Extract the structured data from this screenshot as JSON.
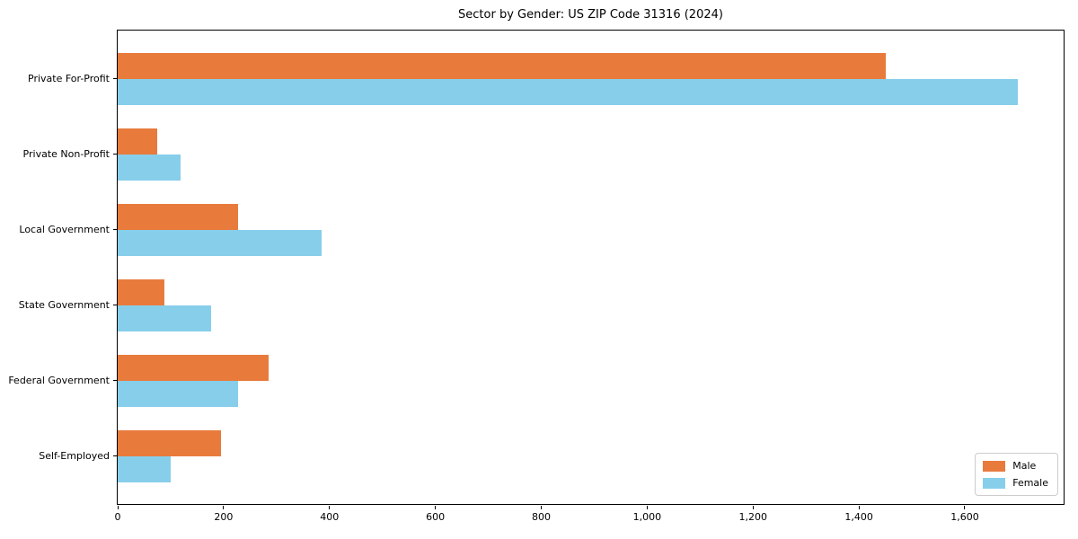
{
  "title": "Sector by Gender: US ZIP Code 31316 (2024)",
  "chart_data": {
    "type": "bar",
    "orientation": "horizontal",
    "title": "Sector by Gender: US ZIP Code 31316 (2024)",
    "categories": [
      "Private For-Profit",
      "Private Non-Profit",
      "Local Government",
      "State Government",
      "Federal Government",
      "Self-Employed"
    ],
    "series": [
      {
        "name": "Male",
        "color": "#e87b3c",
        "values": [
          1450,
          75,
          228,
          89,
          285,
          195
        ]
      },
      {
        "name": "Female",
        "color": "#87ceeb",
        "values": [
          1700,
          118,
          386,
          176,
          228,
          100
        ]
      }
    ],
    "xlabel": "",
    "ylabel": "",
    "xlim": [
      0,
      1785
    ],
    "xticks": {
      "values": [
        0,
        200,
        400,
        600,
        800,
        1000,
        1200,
        1400,
        1600
      ],
      "labels": [
        "0",
        "200",
        "400",
        "600",
        "800",
        "1,000",
        "1,200",
        "1,400",
        "1,600"
      ]
    },
    "grid": false,
    "legend": {
      "position": "lower right",
      "entries": [
        "Male",
        "Female"
      ]
    },
    "spine_color": "#000000",
    "background_color": "#ffffff"
  }
}
